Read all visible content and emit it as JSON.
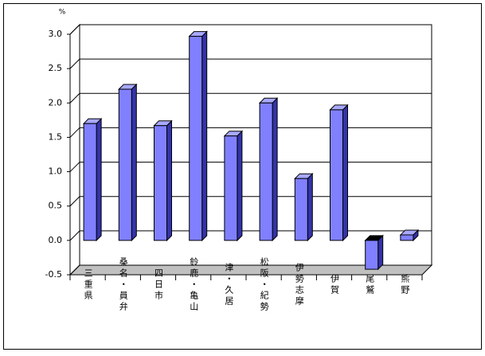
{
  "chart_data": {
    "type": "bar3d",
    "unit": "%",
    "categories": [
      "三重県",
      "桑名・員弁",
      "四日市",
      "鈴鹿・亀山",
      "津・久居",
      "松阪・紀勢",
      "伊勢志摩",
      "伊賀",
      "尾鷲",
      "熊野"
    ],
    "values": [
      1.7,
      2.2,
      1.67,
      2.97,
      1.52,
      2.0,
      0.9,
      1.9,
      -0.42,
      0.08
    ],
    "color": "#8080ff",
    "ylim": [
      -0.5,
      3.0
    ],
    "yticks": [
      -0.5,
      {
        "value": 0,
        "label": "0.0"
      },
      0.5,
      {
        "value": 1,
        "label": "1.0"
      },
      1.5,
      {
        "value": 2,
        "label": "2.0"
      },
      2.5,
      {
        "value": 3,
        "label": "3.0"
      }
    ],
    "negative_tick_color": "#cc0000",
    "grid": true
  }
}
